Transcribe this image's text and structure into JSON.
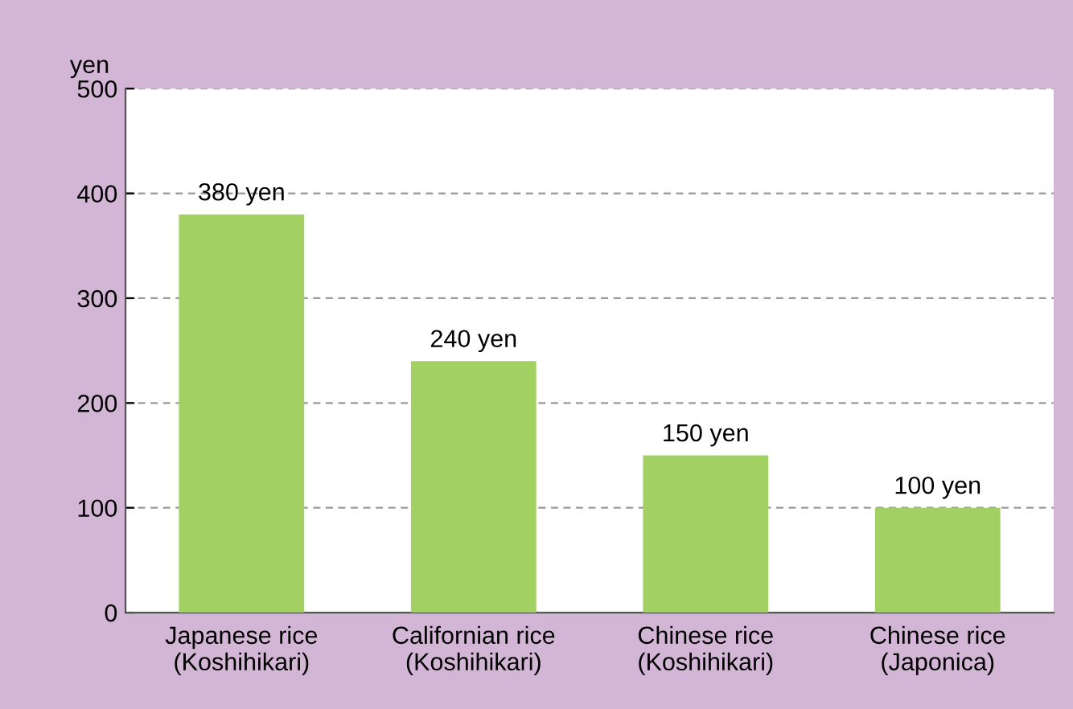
{
  "chart_data": {
    "type": "bar",
    "ylabel": "yen",
    "categories": [
      "Japanese rice\n(Koshihikari)",
      "Californian rice\n(Koshihikari)",
      "Chinese rice\n(Koshihikari)",
      "Chinese rice\n(Japonica)"
    ],
    "values": [
      380,
      240,
      150,
      100
    ],
    "value_labels": [
      "380 yen",
      "240 yen",
      "150 yen",
      "100 yen"
    ],
    "color": "#a3d063",
    "ylim": [
      0,
      500
    ],
    "yticks": [
      0,
      100,
      200,
      300,
      400,
      500
    ],
    "grid": "y"
  }
}
